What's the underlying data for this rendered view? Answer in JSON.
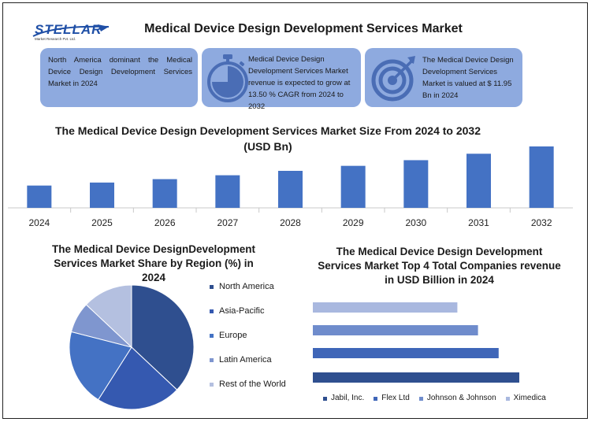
{
  "header": {
    "logo_text": "STELLAR",
    "logo_sub": "Market Research Pvt. Ltd.",
    "title": "Medical Device Design Development Services Market"
  },
  "cards": {
    "card1": "North America dominant the Medical Device Design Development Services Market in 2024",
    "card2": "Medical Device Design Development Services Market revenue is expected to grow at 13.50 % CAGR from 2024 to 2032",
    "card3": "The Medical Device Design Development Services Market is valued at $ 11.95 Bn in 2024"
  },
  "icons": {
    "card2": "stopwatch-icon",
    "card3": "target-icon"
  },
  "chart_data": [
    {
      "type": "bar",
      "title": "The Medical Device Design Development Services Market Size From 2024 to 2032 (USD Bn)",
      "categories": [
        "2024",
        "2025",
        "2026",
        "2027",
        "2028",
        "2029",
        "2030",
        "2031",
        "2032"
      ],
      "values": [
        11.95,
        13.56,
        15.39,
        17.47,
        19.83,
        22.51,
        25.55,
        29.0,
        32.91
      ],
      "color": "#4472c4",
      "grid": false
    },
    {
      "type": "pie",
      "title": "The Medical Device DesignDevelopment Services Market Share by Region (%) in 2024",
      "labels": [
        "North America",
        "Asia-Pacific",
        "Europe",
        "Latin America",
        "Rest of the World"
      ],
      "values": [
        37,
        22,
        20,
        8,
        13
      ],
      "colors": [
        "#2f4f8f",
        "#3559b0",
        "#4472c4",
        "#7f96cf",
        "#b4c0e0"
      ],
      "legend": "right"
    },
    {
      "type": "bar",
      "orientation": "horizontal",
      "title": "The Medical Device Design Development Services Market Top 4 Total Companies revenue in USD Billion in 2024",
      "categories": [
        "Jabil, Inc.",
        "Flex Ltd",
        "Johnson & Johnson",
        "Ximedica"
      ],
      "values": [
        100,
        90,
        80,
        70
      ],
      "colors": [
        "#2f4f8f",
        "#3f66b8",
        "#6f8ccc",
        "#a9b8df"
      ],
      "legend": "bottom"
    }
  ]
}
